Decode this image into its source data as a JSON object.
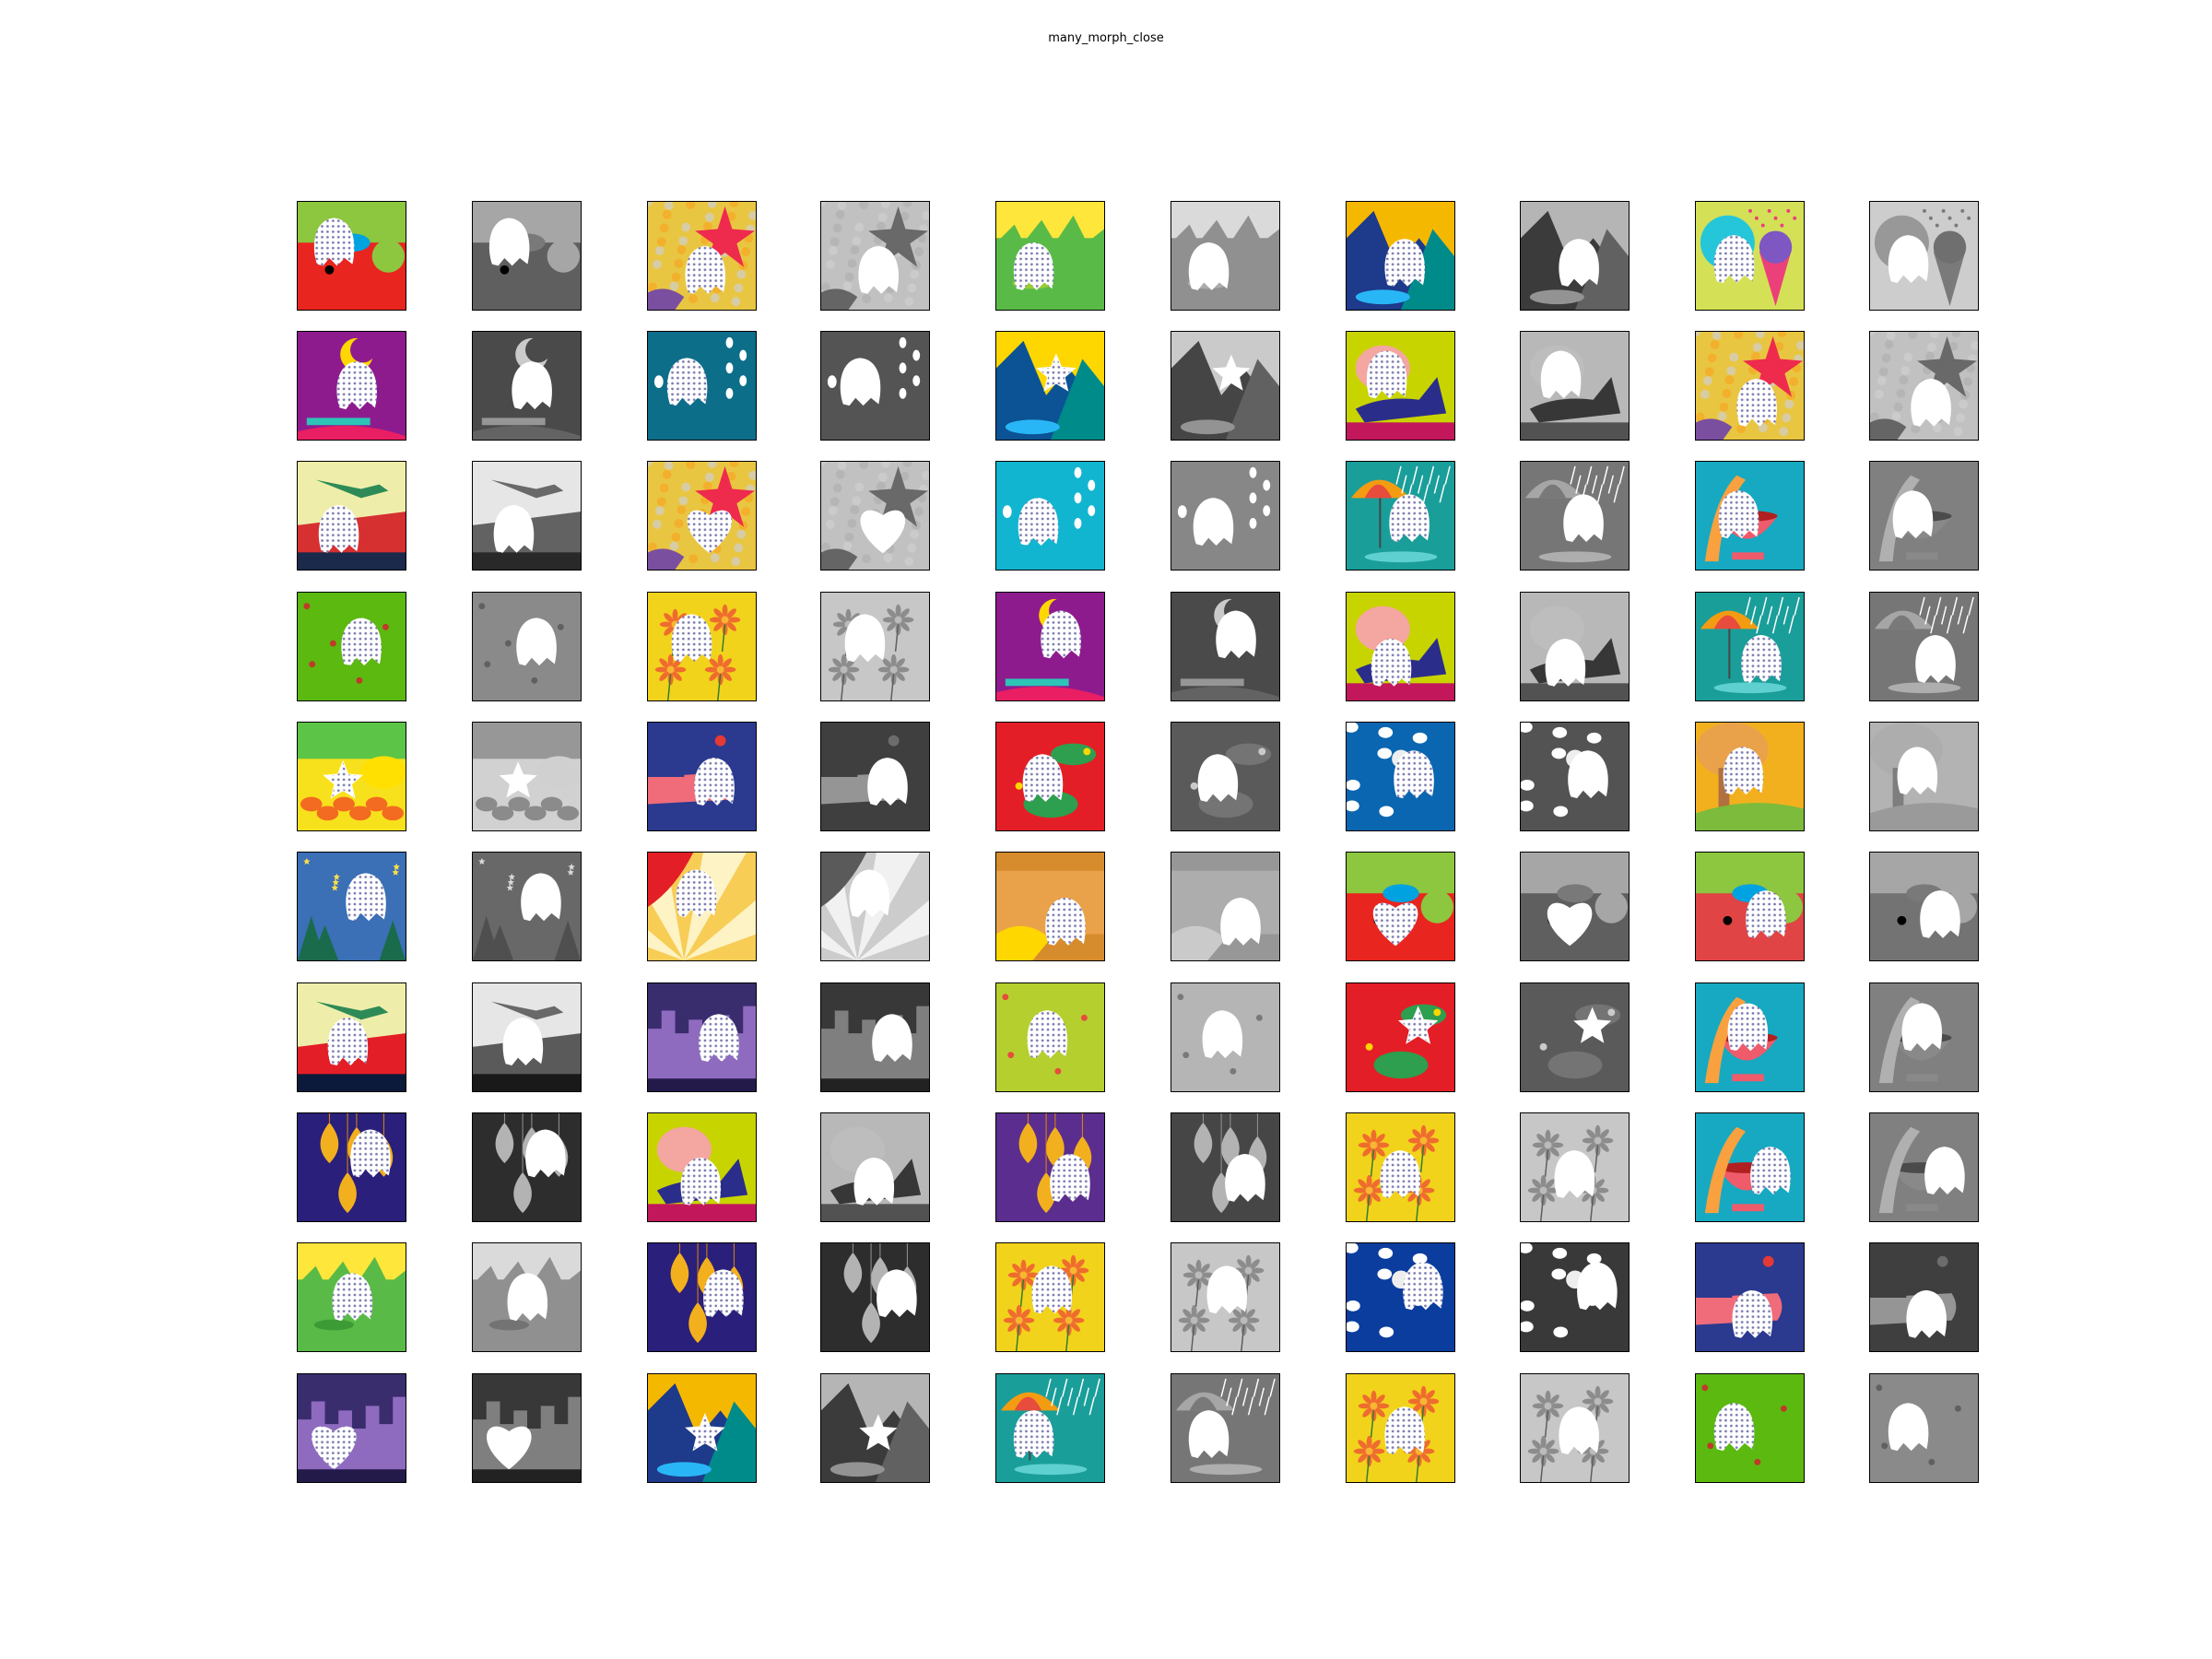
{
  "figure": {
    "title": "many_morph_close"
  },
  "grid": {
    "rows": 10,
    "cols": 10,
    "pairs": [
      {
        "scene": "elephant",
        "bg": "#e8251f",
        "top": "#8dc63f",
        "accent": "#00a3e0",
        "extra": "#ffd700"
      },
      {
        "scene": "starfish",
        "bg": "#e9c641",
        "top": "#f5a623",
        "accent": "#ee2a4d",
        "extra": "#7b4fa0"
      },
      {
        "scene": "grass",
        "bg": "#5aba47",
        "top": "#ffe63b",
        "accent": "#9acd32",
        "extra": "#ffffff"
      },
      {
        "scene": "mountain",
        "bg": "#1e3a8a",
        "top": "#f5b800",
        "accent": "#008b8b",
        "extra": "#29b6f6"
      },
      {
        "scene": "icecream",
        "bg": "#d4e157",
        "top": "#26c6da",
        "accent": "#ec407a",
        "extra": "#7e57c2"
      },
      {
        "scene": "moon",
        "bg": "#8e1b8e",
        "top": "#ffd700",
        "accent": "#2ec4b6",
        "extra": "#e91e63"
      },
      {
        "scene": "teal",
        "bg": "#0d6e8a",
        "top": "#0d6e8a",
        "accent": "#ffffff",
        "extra": "#ffffff"
      },
      {
        "scene": "mountain",
        "bg": "#0b5394",
        "top": "#ffd700",
        "accent": "#008b8b",
        "extra": "#29b6f6"
      },
      {
        "scene": "shoe",
        "bg": "#c8d400",
        "top": "#f4a6a0",
        "accent": "#2b2d8a",
        "extra": "#c2185b"
      },
      {
        "scene": "starfish",
        "bg": "#e9c641",
        "top": "#f5a623",
        "accent": "#ee2a4d",
        "extra": "#7b4fa0"
      },
      {
        "scene": "bird",
        "bg": "#d63031",
        "top": "#eeeeaa",
        "accent": "#2e8b57",
        "extra": "#1b2a4a"
      },
      {
        "scene": "starfish",
        "bg": "#e9c641",
        "top": "#f5a623",
        "accent": "#ee2a4d",
        "extra": "#7b4fa0"
      },
      {
        "scene": "cyan",
        "bg": "#12b5d0",
        "top": "#12b5d0",
        "accent": "#ffffff",
        "extra": "#ffffff"
      },
      {
        "scene": "umbrella",
        "bg": "#1a9e9a",
        "top": "#1a9e9a",
        "accent": "#f39c12",
        "extra": "#e74c3c"
      },
      {
        "scene": "bowl",
        "bg": "#17a9c1",
        "top": "#17a9c1",
        "accent": "#f9a03f",
        "extra": "#ef5b6b"
      },
      {
        "scene": "green",
        "bg": "#5cb90f",
        "top": "#5cb90f",
        "accent": "#c0392b",
        "extra": "#ffffff"
      },
      {
        "scene": "flowers",
        "bg": "#f2d31b",
        "top": "#f2d31b",
        "accent": "#ef6c2f",
        "extra": "#2e7d32"
      },
      {
        "scene": "moon",
        "bg": "#8e1b8e",
        "top": "#ffd700",
        "accent": "#2ec4b6",
        "extra": "#e91e63"
      },
      {
        "scene": "shoe",
        "bg": "#c8d400",
        "top": "#f4a6a0",
        "accent": "#2b2d8a",
        "extra": "#c2185b"
      },
      {
        "scene": "umbrella",
        "bg": "#1a9e9a",
        "top": "#1a9e9a",
        "accent": "#f39c12",
        "extra": "#e74c3c"
      },
      {
        "scene": "autumn",
        "bg": "#f7e11c",
        "top": "#5cc447",
        "accent": "#f26b21",
        "extra": "#8e44ad"
      },
      {
        "scene": "boot",
        "bg": "#2b3a8f",
        "top": "#2b3a8f",
        "accent": "#f06c7a",
        "extra": "#e53935"
      },
      {
        "scene": "fish",
        "bg": "#e41e26",
        "top": "#e41e26",
        "accent": "#2e9e4f",
        "extra": "#ffd700"
      },
      {
        "scene": "ocean",
        "bg": "#0a66b0",
        "top": "#0a66b0",
        "accent": "#ffffff",
        "extra": "#e74c3c"
      },
      {
        "scene": "bear",
        "bg": "#f2b01e",
        "top": "#e9a24a",
        "accent": "#7cbb3b",
        "extra": "#c0392b"
      },
      {
        "scene": "night",
        "bg": "#3b6fb6",
        "top": "#3b6fb6",
        "accent": "#ffe04b",
        "extra": "#1a6b4b"
      },
      {
        "scene": "fan",
        "bg": "#fdf3c4",
        "top": "#e41e26",
        "accent": "#f6c94a",
        "extra": "#b03030"
      },
      {
        "scene": "butterfly",
        "bg": "#d68c2d",
        "top": "#e9a24a",
        "accent": "#ffd700",
        "extra": "#ffffff"
      },
      {
        "scene": "elephant",
        "bg": "#e8251f",
        "top": "#8dc63f",
        "accent": "#00a3e0",
        "extra": "#ffd700"
      },
      {
        "scene": "elephant",
        "bg": "#e04444",
        "top": "#8dc63f",
        "accent": "#00a3e0",
        "extra": "#ffd700"
      },
      {
        "scene": "bird",
        "bg": "#e41e26",
        "top": "#eeeeaa",
        "accent": "#2e8b57",
        "extra": "#0b1a3a"
      },
      {
        "scene": "city",
        "bg": "#3a2d6e",
        "top": "#3a2d6e",
        "accent": "#8e6bbf",
        "extra": "#241a4a"
      },
      {
        "scene": "lime",
        "bg": "#b5cf2f",
        "top": "#b5cf2f",
        "accent": "#e74c3c",
        "extra": "#ffffff"
      },
      {
        "scene": "fish",
        "bg": "#e41e26",
        "top": "#e41e26",
        "accent": "#2e9e4f",
        "extra": "#ffd700"
      },
      {
        "scene": "bowl",
        "bg": "#17a9c1",
        "top": "#17a9c1",
        "accent": "#f9a03f",
        "extra": "#ef5b6b"
      },
      {
        "scene": "lanterns",
        "bg": "#2a1f7a",
        "top": "#2a1f7a",
        "accent": "#f2b01e",
        "extra": "#e58a00"
      },
      {
        "scene": "shoe",
        "bg": "#c8d400",
        "top": "#f4a6a0",
        "accent": "#2b2d8a",
        "extra": "#c2185b"
      },
      {
        "scene": "lanterns",
        "bg": "#5a2d8e",
        "top": "#5a2d8e",
        "accent": "#f2b01e",
        "extra": "#e58a00"
      },
      {
        "scene": "flowers",
        "bg": "#f2d31b",
        "top": "#f2d31b",
        "accent": "#ef6c2f",
        "extra": "#2e7d32"
      },
      {
        "scene": "bowl",
        "bg": "#17a9c1",
        "top": "#17a9c1",
        "accent": "#f9a03f",
        "extra": "#ef5b6b"
      },
      {
        "scene": "grass",
        "bg": "#5aba47",
        "top": "#ffe63b",
        "accent": "#3d9b35",
        "extra": "#ffffff"
      },
      {
        "scene": "lanterns",
        "bg": "#2a1f7a",
        "top": "#2a1f7a",
        "accent": "#f2b01e",
        "extra": "#e58a00"
      },
      {
        "scene": "flowers",
        "bg": "#f2d31b",
        "top": "#f2d31b",
        "accent": "#ef6c2f",
        "extra": "#2e7d32"
      },
      {
        "scene": "ocean",
        "bg": "#0a3d9e",
        "top": "#0a3d9e",
        "accent": "#ffffff",
        "extra": "#e74c3c"
      },
      {
        "scene": "boot",
        "bg": "#2b3a8f",
        "top": "#2b3a8f",
        "accent": "#f06c7a",
        "extra": "#e53935"
      },
      {
        "scene": "city",
        "bg": "#3a2d6e",
        "top": "#3a2d6e",
        "accent": "#8e6bbf",
        "extra": "#241a4a"
      },
      {
        "scene": "mountain",
        "bg": "#1e3a8a",
        "top": "#f5b800",
        "accent": "#008b8b",
        "extra": "#29b6f6"
      },
      {
        "scene": "umbrella",
        "bg": "#1a9e9a",
        "top": "#1a9e9a",
        "accent": "#f39c12",
        "extra": "#e74c3c"
      },
      {
        "scene": "flowers",
        "bg": "#f2d31b",
        "top": "#f2d31b",
        "accent": "#ef6c2f",
        "extra": "#2e7d32"
      },
      {
        "scene": "green",
        "bg": "#5cb90f",
        "top": "#5cb90f",
        "accent": "#c0392b",
        "extra": "#ffffff"
      }
    ]
  }
}
